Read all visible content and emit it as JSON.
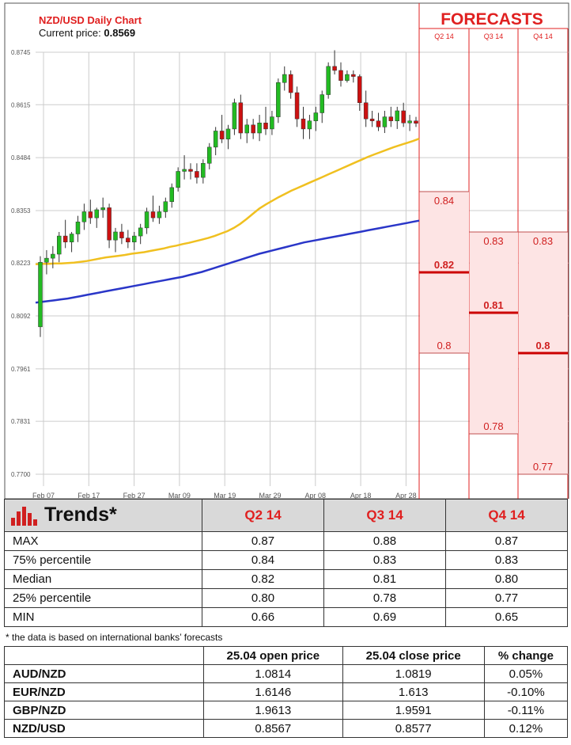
{
  "header": {
    "title": "NZD/USD Daily Chart",
    "current_price_label": "Current price:",
    "current_price": "0.8569"
  },
  "colors": {
    "bull": "#22bb22",
    "bear": "#cc1111",
    "ma_short": "#f0c020",
    "ma_long": "#2a36c8",
    "accent": "#e02020",
    "forecast_fill": "#fde4e4"
  },
  "chart_data": [
    {
      "type": "candlestick",
      "title": "NZD/USD Daily Chart",
      "subtitle": "Current price: 0.8569",
      "y_ticks": [
        "0.8745",
        "0.8615",
        "0.8484",
        "0.8353",
        "0.8223",
        "0.8092",
        "0.7961",
        "0.7831",
        "0.7700"
      ],
      "x_ticks": [
        "Feb 07",
        "Feb 17",
        "Feb 27",
        "Mar 09",
        "Mar 19",
        "Mar 29",
        "Apr 08",
        "Apr 18",
        "Apr 28"
      ],
      "ylim": [
        0.77,
        0.8745
      ],
      "grid": true,
      "candles": [
        [
          0.8065,
          0.824,
          0.804,
          0.8225
        ],
        [
          0.8225,
          0.8255,
          0.8195,
          0.8235
        ],
        [
          0.8235,
          0.8265,
          0.821,
          0.8245
        ],
        [
          0.8245,
          0.83,
          0.8225,
          0.829
        ],
        [
          0.829,
          0.833,
          0.826,
          0.8275
        ],
        [
          0.8275,
          0.83,
          0.825,
          0.8295
        ],
        [
          0.8295,
          0.834,
          0.8275,
          0.8325
        ],
        [
          0.8325,
          0.837,
          0.8305,
          0.835
        ],
        [
          0.835,
          0.838,
          0.832,
          0.8335
        ],
        [
          0.8335,
          0.836,
          0.831,
          0.8355
        ],
        [
          0.8355,
          0.8385,
          0.8335,
          0.836
        ],
        [
          0.836,
          0.837,
          0.826,
          0.828
        ],
        [
          0.828,
          0.831,
          0.825,
          0.83
        ],
        [
          0.83,
          0.832,
          0.827,
          0.8285
        ],
        [
          0.8285,
          0.8305,
          0.826,
          0.8275
        ],
        [
          0.8275,
          0.83,
          0.8255,
          0.829
        ],
        [
          0.829,
          0.832,
          0.827,
          0.831
        ],
        [
          0.831,
          0.836,
          0.8295,
          0.835
        ],
        [
          0.835,
          0.839,
          0.8325,
          0.8335
        ],
        [
          0.8335,
          0.8365,
          0.832,
          0.835
        ],
        [
          0.835,
          0.8385,
          0.8335,
          0.8375
        ],
        [
          0.8375,
          0.842,
          0.836,
          0.841
        ],
        [
          0.841,
          0.846,
          0.84,
          0.845
        ],
        [
          0.845,
          0.849,
          0.843,
          0.8455
        ],
        [
          0.8455,
          0.847,
          0.843,
          0.845
        ],
        [
          0.845,
          0.847,
          0.842,
          0.8435
        ],
        [
          0.8435,
          0.848,
          0.842,
          0.847
        ],
        [
          0.847,
          0.852,
          0.8455,
          0.851
        ],
        [
          0.851,
          0.856,
          0.849,
          0.855
        ],
        [
          0.855,
          0.859,
          0.852,
          0.853
        ],
        [
          0.853,
          0.8565,
          0.8505,
          0.8555
        ],
        [
          0.8555,
          0.863,
          0.854,
          0.862
        ],
        [
          0.862,
          0.864,
          0.853,
          0.8545
        ],
        [
          0.8545,
          0.858,
          0.852,
          0.8565
        ],
        [
          0.8565,
          0.858,
          0.853,
          0.8545
        ],
        [
          0.8545,
          0.859,
          0.8525,
          0.857
        ],
        [
          0.857,
          0.861,
          0.854,
          0.8555
        ],
        [
          0.8555,
          0.86,
          0.854,
          0.8585
        ],
        [
          0.8585,
          0.868,
          0.857,
          0.867
        ],
        [
          0.867,
          0.871,
          0.865,
          0.869
        ],
        [
          0.869,
          0.87,
          0.863,
          0.8645
        ],
        [
          0.8645,
          0.866,
          0.856,
          0.858
        ],
        [
          0.858,
          0.861,
          0.853,
          0.8555
        ],
        [
          0.8555,
          0.859,
          0.853,
          0.8575
        ],
        [
          0.8575,
          0.861,
          0.855,
          0.8595
        ],
        [
          0.8595,
          0.865,
          0.857,
          0.864
        ],
        [
          0.864,
          0.872,
          0.863,
          0.871
        ],
        [
          0.871,
          0.875,
          0.869,
          0.87
        ],
        [
          0.87,
          0.872,
          0.866,
          0.8675
        ],
        [
          0.8675,
          0.87,
          0.867,
          0.869
        ],
        [
          0.869,
          0.87,
          0.867,
          0.8685
        ],
        [
          0.8685,
          0.869,
          0.86,
          0.862
        ],
        [
          0.862,
          0.865,
          0.856,
          0.858
        ],
        [
          0.858,
          0.86,
          0.856,
          0.8575
        ],
        [
          0.8575,
          0.8595,
          0.855,
          0.856
        ],
        [
          0.856,
          0.86,
          0.8545,
          0.8585
        ],
        [
          0.8585,
          0.861,
          0.856,
          0.8575
        ],
        [
          0.8575,
          0.861,
          0.8555,
          0.86
        ],
        [
          0.86,
          0.862,
          0.856,
          0.857
        ],
        [
          0.857,
          0.859,
          0.855,
          0.8575
        ],
        [
          0.8575,
          0.8585,
          0.856,
          0.8569
        ]
      ],
      "ma_short_values": [
        0.822,
        0.8221,
        0.8221,
        0.8222,
        0.8222,
        0.8223,
        0.8224,
        0.8226,
        0.8228,
        0.8231,
        0.8234,
        0.8237,
        0.8239,
        0.8241,
        0.8243,
        0.8246,
        0.8248,
        0.825,
        0.8253,
        0.8256,
        0.8259,
        0.8263,
        0.8266,
        0.827,
        0.8273,
        0.8277,
        0.8281,
        0.8285,
        0.829,
        0.8296,
        0.8302,
        0.831,
        0.832,
        0.8332,
        0.8345,
        0.8358,
        0.8368,
        0.8377,
        0.8386,
        0.8394,
        0.8402,
        0.8409,
        0.8416,
        0.8423,
        0.843,
        0.8437,
        0.8444,
        0.8451,
        0.8458,
        0.8465,
        0.8472,
        0.8479,
        0.8486,
        0.8492,
        0.8498,
        0.8504,
        0.851,
        0.8515,
        0.852,
        0.8525,
        0.8531
      ],
      "ma_long_values": [
        0.8125,
        0.8127,
        0.8129,
        0.8131,
        0.8133,
        0.8135,
        0.8138,
        0.8141,
        0.8144,
        0.8147,
        0.815,
        0.8153,
        0.8156,
        0.8159,
        0.8162,
        0.8165,
        0.8168,
        0.8171,
        0.8174,
        0.8177,
        0.818,
        0.8183,
        0.8186,
        0.8189,
        0.8193,
        0.8197,
        0.8201,
        0.8206,
        0.8211,
        0.8216,
        0.8221,
        0.8226,
        0.8231,
        0.8236,
        0.8241,
        0.8246,
        0.825,
        0.8254,
        0.8258,
        0.8262,
        0.8266,
        0.827,
        0.8274,
        0.8277,
        0.828,
        0.8283,
        0.8286,
        0.8289,
        0.8292,
        0.8295,
        0.8298,
        0.8301,
        0.8304,
        0.8307,
        0.831,
        0.8313,
        0.8316,
        0.8319,
        0.8322,
        0.8325,
        0.8328
      ]
    },
    {
      "type": "forecast-range",
      "title": "FORECASTS",
      "columns": [
        {
          "label": "Q2 14",
          "high": "0.84",
          "median": "0.82",
          "low": "0.8",
          "high_v": 0.84,
          "median_v": 0.82,
          "low_v": 0.8
        },
        {
          "label": "Q3 14",
          "high": "0.83",
          "median": "0.81",
          "low": "0.78",
          "high_v": 0.83,
          "median_v": 0.81,
          "low_v": 0.78
        },
        {
          "label": "Q4 14",
          "high": "0.83",
          "median": "0.8",
          "low": "0.77",
          "high_v": 0.83,
          "median_v": 0.8,
          "low_v": 0.77
        }
      ]
    }
  ],
  "trends": {
    "title": "Trends*",
    "headers": [
      "Q2 14",
      "Q3 14",
      "Q4 14"
    ],
    "rows": [
      {
        "label": "MAX",
        "values": [
          "0.87",
          "0.88",
          "0.87"
        ]
      },
      {
        "label": "75% percentile",
        "values": [
          "0.84",
          "0.83",
          "0.83"
        ]
      },
      {
        "label": "Median",
        "values": [
          "0.82",
          "0.81",
          "0.80"
        ]
      },
      {
        "label": "25% percentile",
        "values": [
          "0.80",
          "0.78",
          "0.77"
        ]
      },
      {
        "label": "MIN",
        "values": [
          "0.66",
          "0.69",
          "0.65"
        ]
      }
    ],
    "footnote": "* the data is based on international banks’ forecasts"
  },
  "prices": {
    "headers": [
      "25.04 open price",
      "25.04 close price",
      "% change"
    ],
    "rows": [
      {
        "pair": "AUD/NZD",
        "open": "1.0814",
        "close": "1.0819",
        "change": "0.05%"
      },
      {
        "pair": "EUR/NZD",
        "open": "1.6146",
        "close": "1.613",
        "change": "-0.10%"
      },
      {
        "pair": "GBP/NZD",
        "open": "1.9613",
        "close": "1.9591",
        "change": "-0.11%"
      },
      {
        "pair": "NZD/USD",
        "open": "0.8567",
        "close": "0.8577",
        "change": "0.12%"
      }
    ]
  }
}
